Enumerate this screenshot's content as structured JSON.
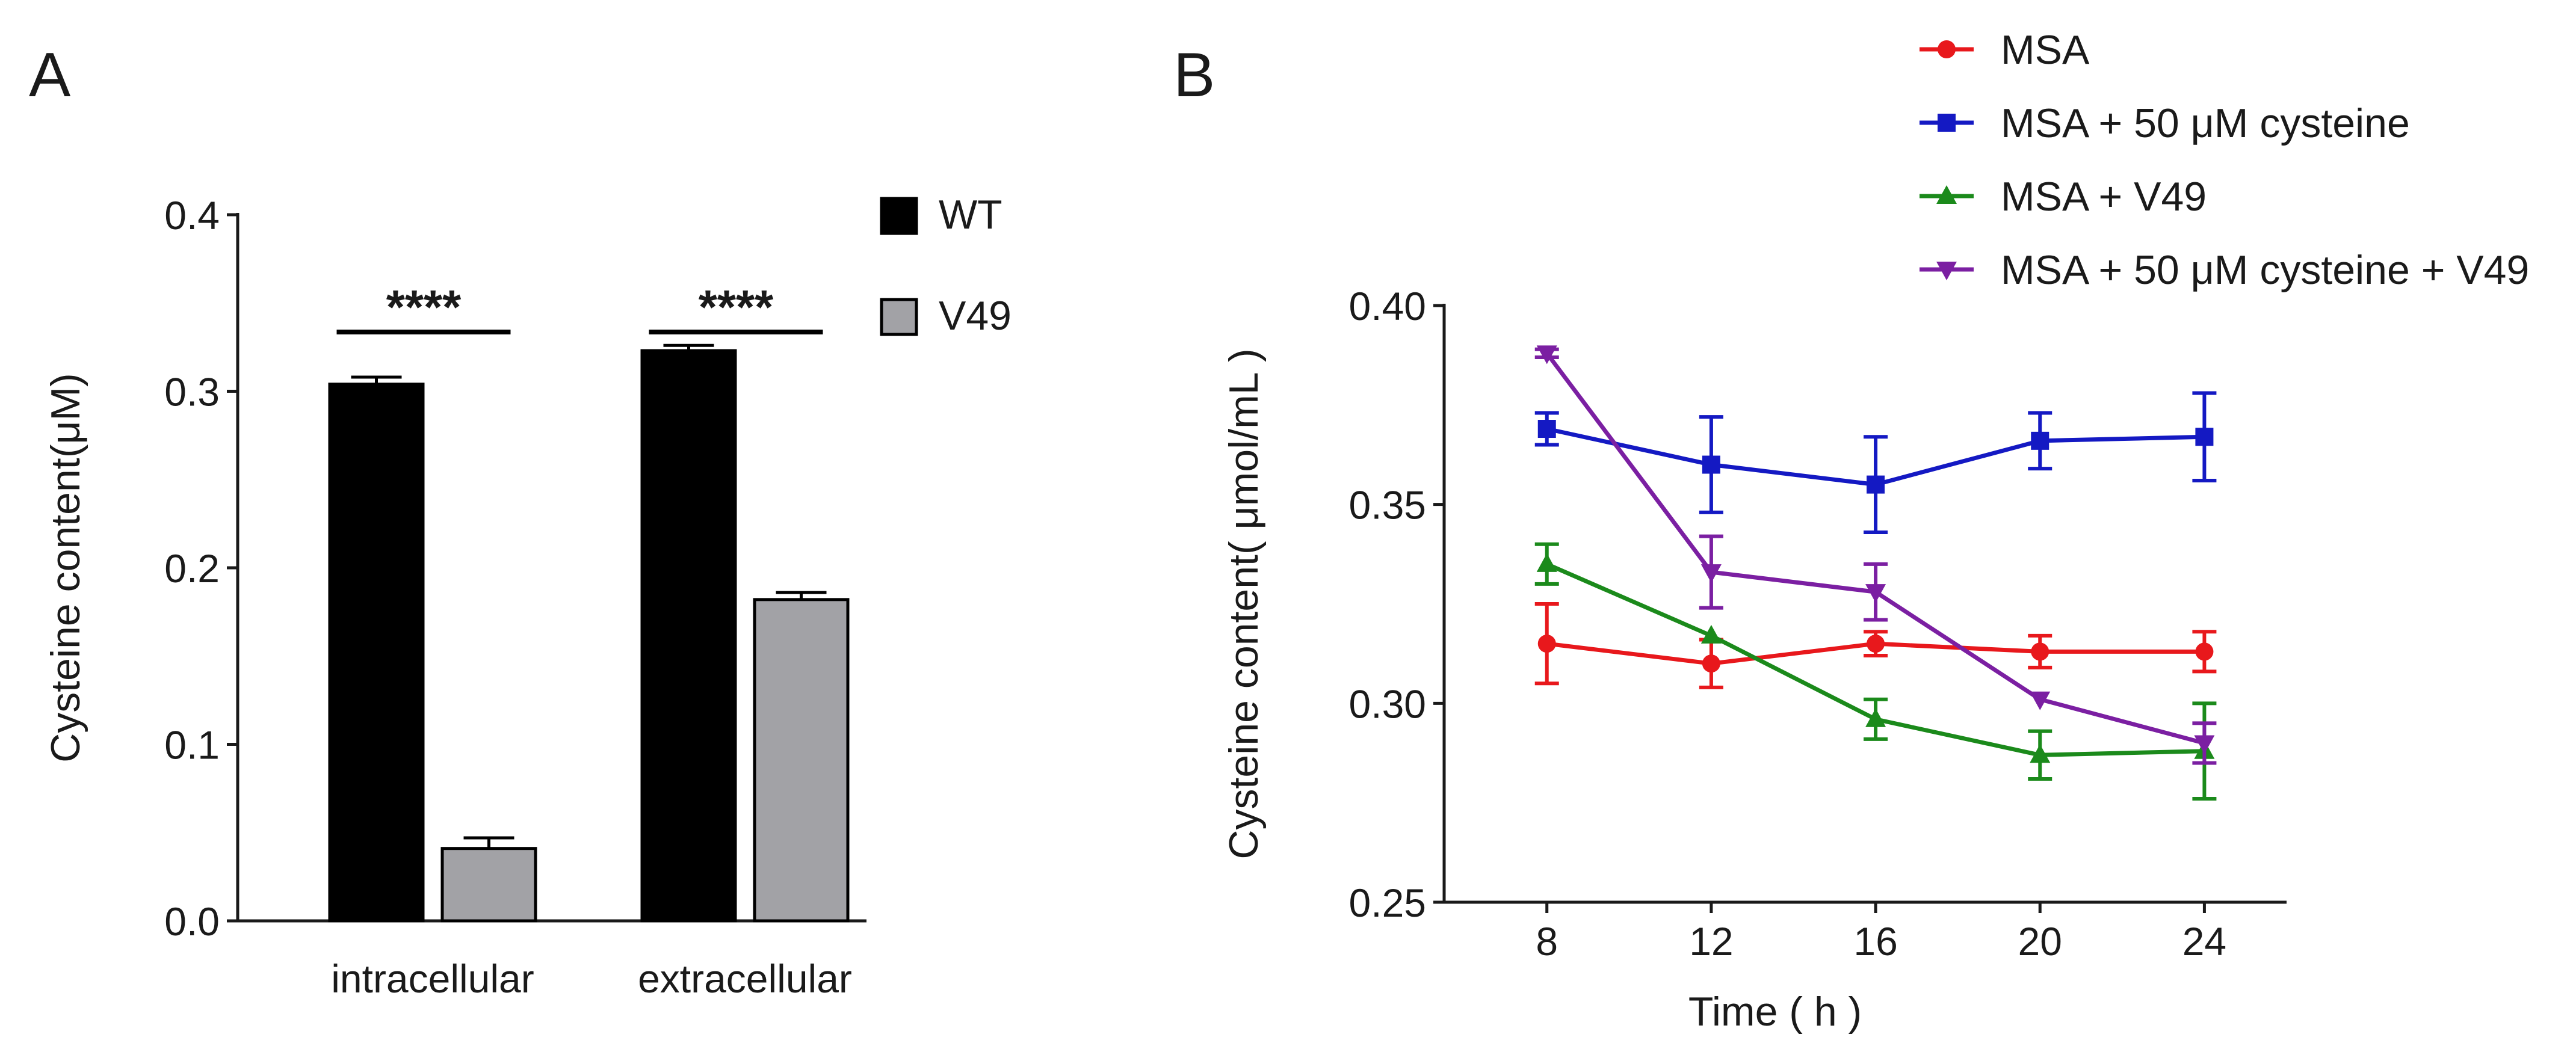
{
  "chart_data": [
    {
      "panel": "A",
      "type": "bar",
      "title": "",
      "xlabel": "",
      "ylabel": "Cysteine content(μM)",
      "ylim": [
        0,
        0.4
      ],
      "yticks": [
        "0.0",
        "0.1",
        "0.2",
        "0.3",
        "0.4"
      ],
      "categories": [
        "intracellular",
        "extracellular"
      ],
      "series": [
        {
          "name": "WT",
          "color": "#000000",
          "values": [
            0.304,
            0.323
          ],
          "errors": [
            0.004,
            0.003
          ]
        },
        {
          "name": "V49",
          "color": "#a2a2a6",
          "values": [
            0.041,
            0.182
          ],
          "errors": [
            0.006,
            0.004
          ]
        }
      ],
      "significance": [
        "****",
        "****"
      ],
      "legend": "top-right"
    },
    {
      "panel": "B",
      "type": "line",
      "title": "",
      "xlabel": "Time ( h )",
      "ylabel": "Cysteine content( μmol/mL )",
      "xlim": [
        5.5,
        26
      ],
      "ylim": [
        0.25,
        0.4
      ],
      "x": [
        8,
        12,
        16,
        20,
        24
      ],
      "xticks": [
        "8",
        "12",
        "16",
        "20",
        "24"
      ],
      "yticks": [
        "0.25",
        "0.30",
        "0.35",
        "0.40"
      ],
      "series": [
        {
          "name": "MSA",
          "color": "#e8181c",
          "marker": "circle",
          "values": [
            0.315,
            0.31,
            0.315,
            0.313,
            0.313
          ],
          "errors": [
            0.01,
            0.006,
            0.003,
            0.004,
            0.005
          ]
        },
        {
          "name": "MSA + 50 μM cysteine",
          "color": "#1419c3",
          "marker": "square",
          "values": [
            0.369,
            0.36,
            0.355,
            0.366,
            0.367
          ],
          "errors": [
            0.004,
            0.012,
            0.012,
            0.007,
            0.011
          ]
        },
        {
          "name": "MSA + V49",
          "color": "#1b8a1b",
          "marker": "triangle-up",
          "values": [
            0.335,
            0.317,
            0.296,
            0.287,
            0.288
          ],
          "errors": [
            0.005,
            0.0,
            0.005,
            0.006,
            0.012
          ]
        },
        {
          "name": "MSA + 50 μM cysteine + V49",
          "color": "#7b1fa2",
          "marker": "triangle-down",
          "values": [
            0.388,
            0.333,
            0.328,
            0.301,
            0.29
          ],
          "errors": [
            0.001,
            0.009,
            0.007,
            0.0,
            0.005
          ]
        }
      ],
      "legend": "top-right"
    }
  ]
}
